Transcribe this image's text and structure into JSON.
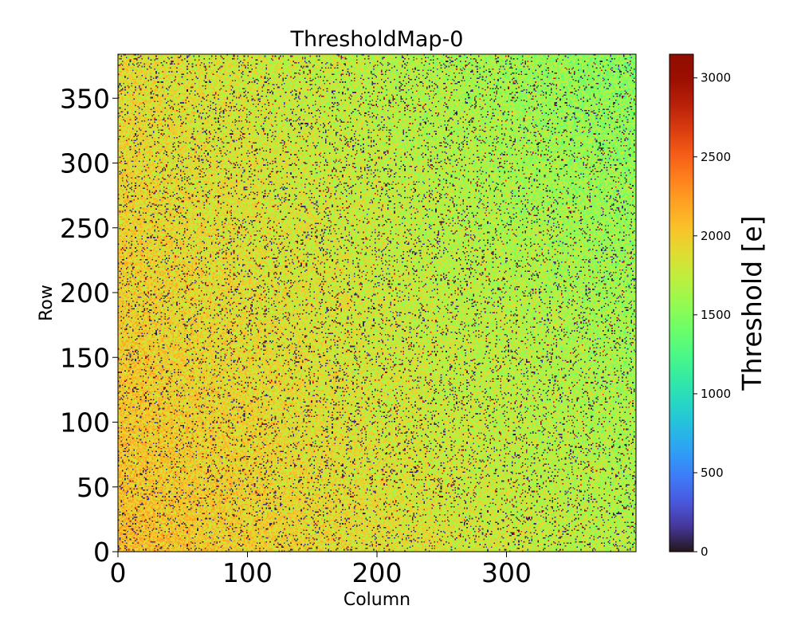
{
  "chart_data": {
    "type": "heatmap",
    "title": "ThresholdMap-0",
    "xlabel": "Column",
    "ylabel": "Row",
    "xlim": [
      0,
      400
    ],
    "ylim": [
      0,
      384
    ],
    "x_ticks": [
      {
        "value": 0,
        "label": "0"
      },
      {
        "value": 100,
        "label": "100"
      },
      {
        "value": 200,
        "label": "200"
      },
      {
        "value": 300,
        "label": "300"
      }
    ],
    "y_ticks": [
      {
        "value": 0,
        "label": "0"
      },
      {
        "value": 50,
        "label": "50"
      },
      {
        "value": 100,
        "label": "100"
      },
      {
        "value": 150,
        "label": "150"
      },
      {
        "value": 200,
        "label": "200"
      },
      {
        "value": 250,
        "label": "250"
      },
      {
        "value": 300,
        "label": "300"
      },
      {
        "value": 350,
        "label": "350"
      }
    ],
    "colorbar": {
      "label": "Threshold [e]",
      "colormap": "turbo",
      "range": [
        0,
        3150
      ],
      "ticks": [
        {
          "value": 0,
          "label": "0"
        },
        {
          "value": 500,
          "label": "500"
        },
        {
          "value": 1000,
          "label": "1000"
        },
        {
          "value": 1500,
          "label": "1500"
        },
        {
          "value": 2000,
          "label": "2000"
        },
        {
          "value": 2500,
          "label": "2500"
        },
        {
          "value": 3000,
          "label": "3000"
        }
      ]
    },
    "grid": false,
    "legend": "none"
  }
}
